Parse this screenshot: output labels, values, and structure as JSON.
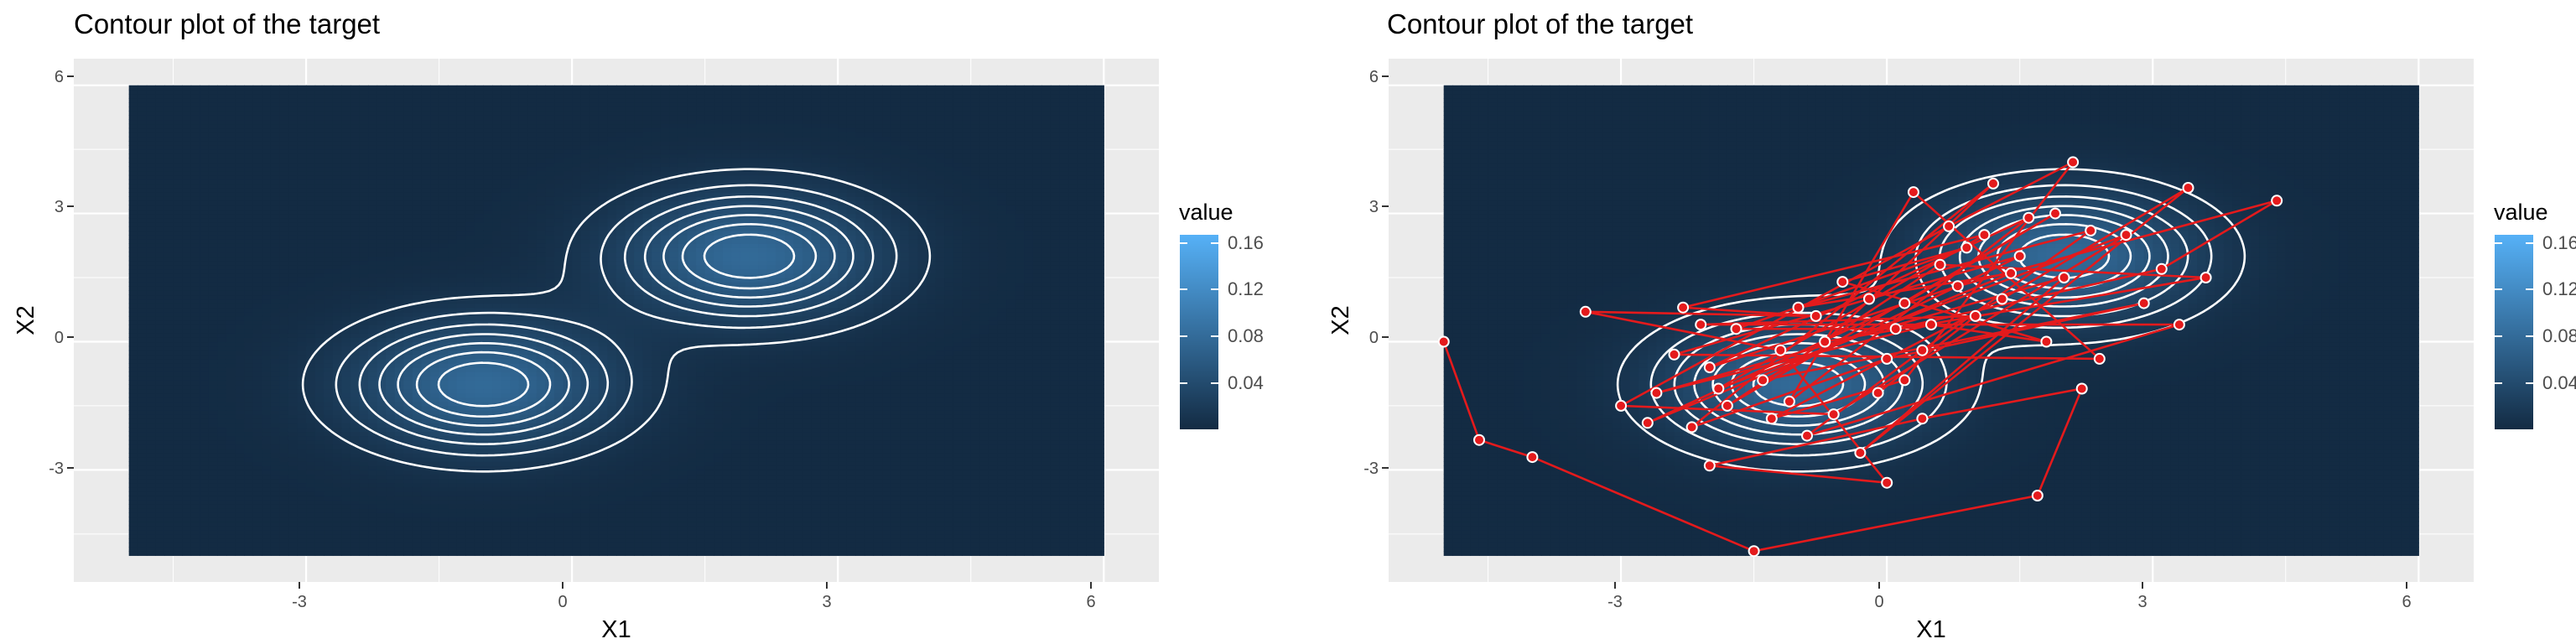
{
  "colors": {
    "panel_bg": "#EBEBEB",
    "grid_major": "#FFFFFF",
    "fill_low": "#132B43",
    "fill_high": "#56B1F7",
    "contour": "#FFFFFF",
    "path": "#E41A1C",
    "point_fill": "#E41A1C",
    "point_stroke": "#FFFFFF"
  },
  "chart_data": [
    {
      "type": "heatmap",
      "title": "Contour plot of the target",
      "xlabel": "X1",
      "ylabel": "X2",
      "xlim": [
        -5,
        6
      ],
      "ylim": [
        -5,
        6
      ],
      "x_ticks": [
        -3,
        0,
        3,
        6
      ],
      "y_ticks": [
        -3,
        0,
        3,
        6
      ],
      "x_tick_labels": [
        "-3",
        "0",
        "3",
        "6"
      ],
      "y_tick_labels": [
        "-3",
        "0",
        "3",
        "6"
      ],
      "grid": true,
      "density": {
        "description": "Equal mixture of two bivariate normals",
        "components": [
          {
            "weight": 0.5,
            "mean": [
              -1,
              -1
            ],
            "sd": [
              1,
              1
            ]
          },
          {
            "weight": 0.5,
            "mean": [
              2,
              2
            ],
            "sd": [
              1,
              1
            ]
          }
        ]
      },
      "contour_levels": [
        0.01,
        0.02,
        0.03,
        0.04,
        0.05,
        0.06,
        0.07,
        0.08
      ],
      "legend": {
        "title": "value",
        "placement": "right",
        "breaks": [
          0.04,
          0.08,
          0.12,
          0.16
        ],
        "labels": [
          "0.04",
          "0.08",
          "0.12",
          "0.16"
        ],
        "range": [
          0,
          0.17
        ]
      }
    },
    {
      "type": "heatmap",
      "title": "Contour plot of the target",
      "xlabel": "X1",
      "ylabel": "X2",
      "xlim": [
        -5,
        6
      ],
      "ylim": [
        -5,
        6
      ],
      "x_ticks": [
        -3,
        0,
        3,
        6
      ],
      "y_ticks": [
        -3,
        0,
        3,
        6
      ],
      "x_tick_labels": [
        "-3",
        "0",
        "3",
        "6"
      ],
      "y_tick_labels": [
        "-3",
        "0",
        "3",
        "6"
      ],
      "grid": true,
      "density": {
        "description": "Equal mixture of two bivariate normals",
        "components": [
          {
            "weight": 0.5,
            "mean": [
              -1,
              -1
            ],
            "sd": [
              1,
              1
            ]
          },
          {
            "weight": 0.5,
            "mean": [
              2,
              2
            ],
            "sd": [
              1,
              1
            ]
          }
        ]
      },
      "contour_levels": [
        0.01,
        0.02,
        0.03,
        0.04,
        0.05,
        0.06,
        0.07,
        0.08
      ],
      "legend": {
        "title": "value",
        "placement": "right",
        "breaks": [
          0.04,
          0.08,
          0.12,
          0.16
        ],
        "labels": [
          "0.04",
          "0.08",
          "0.12",
          "0.16"
        ],
        "range": [
          0,
          0.17
        ]
      },
      "path_series": {
        "type": "line",
        "points": [
          [
            -5.0,
            0.0
          ],
          [
            -4.6,
            -2.3
          ],
          [
            -4.0,
            -2.7
          ],
          [
            -1.5,
            -4.9
          ],
          [
            1.7,
            -3.6
          ],
          [
            2.2,
            -1.1
          ],
          [
            0.4,
            -1.8
          ],
          [
            -2.0,
            -2.9
          ],
          [
            0.0,
            -3.3
          ],
          [
            -1.2,
            -0.2
          ],
          [
            -3.4,
            0.7
          ],
          [
            -0.8,
            0.6
          ],
          [
            -2.3,
            0.8
          ],
          [
            1.1,
            2.5
          ],
          [
            -1.9,
            -1.1
          ],
          [
            2.7,
            2.5
          ],
          [
            -0.6,
            -1.7
          ],
          [
            -3.0,
            -1.5
          ],
          [
            0.7,
            2.7
          ],
          [
            2.1,
            4.2
          ],
          [
            0.2,
            -0.9
          ],
          [
            -1.3,
            -1.8
          ],
          [
            1.3,
            1.0
          ],
          [
            3.4,
            3.6
          ],
          [
            -0.3,
            -2.6
          ],
          [
            2.0,
            1.5
          ],
          [
            -2.6,
            -1.2
          ],
          [
            0.5,
            0.4
          ],
          [
            1.8,
            0.0
          ],
          [
            -0.5,
            1.4
          ],
          [
            0.9,
            2.2
          ],
          [
            -1.7,
            0.3
          ],
          [
            0.1,
            0.3
          ],
          [
            3.1,
            1.7
          ],
          [
            4.4,
            3.3
          ],
          [
            0.8,
            1.3
          ],
          [
            -2.0,
            -0.6
          ],
          [
            1.6,
            2.9
          ],
          [
            -1.1,
            -1.4
          ],
          [
            0.3,
            3.5
          ],
          [
            2.4,
            -0.4
          ],
          [
            -2.4,
            -0.3
          ],
          [
            -0.2,
            1.0
          ],
          [
            1.5,
            2.0
          ],
          [
            -1.4,
            -0.9
          ],
          [
            2.9,
            0.9
          ],
          [
            0.0,
            -0.4
          ],
          [
            -2.2,
            -2.0
          ],
          [
            1.2,
            3.7
          ],
          [
            -0.7,
            0.0
          ],
          [
            3.6,
            1.5
          ],
          [
            0.6,
            1.8
          ],
          [
            -1.8,
            -1.5
          ],
          [
            1.9,
            3.0
          ],
          [
            0.2,
            0.9
          ],
          [
            -2.7,
            -1.9
          ],
          [
            1.4,
            1.6
          ],
          [
            -1.0,
            0.8
          ],
          [
            2.3,
            2.6
          ],
          [
            0.4,
            -0.2
          ],
          [
            -0.9,
            -2.2
          ],
          [
            3.3,
            0.4
          ],
          [
            -2.1,
            0.4
          ],
          [
            1.0,
            0.6
          ],
          [
            -0.1,
            -1.2
          ]
        ]
      }
    }
  ],
  "charts": [
    {
      "title": "Contour plot of the target",
      "xlabel": "X1",
      "ylabel": "X2",
      "legend_title": "value",
      "x_tick_labels": [
        "-3",
        "0",
        "3",
        "6"
      ],
      "y_tick_labels": [
        "-3",
        "0",
        "3",
        "6"
      ],
      "legend_labels": [
        "0.04",
        "0.08",
        "0.12",
        "0.16"
      ]
    },
    {
      "title": "Contour plot of the target",
      "xlabel": "X1",
      "ylabel": "X2",
      "legend_title": "value",
      "x_tick_labels": [
        "-3",
        "0",
        "3",
        "6"
      ],
      "y_tick_labels": [
        "-3",
        "0",
        "3",
        "6"
      ],
      "legend_labels": [
        "0.04",
        "0.08",
        "0.12",
        "0.16"
      ]
    }
  ]
}
